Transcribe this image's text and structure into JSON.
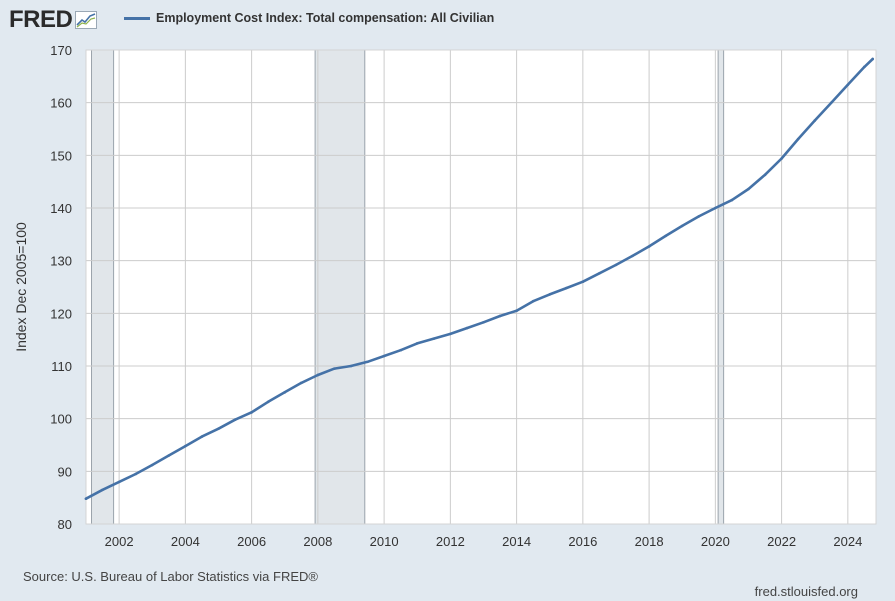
{
  "header": {
    "logo_text": "FRED",
    "legend_label": "Employment Cost Index: Total compensation: All Civilian"
  },
  "footer": {
    "source": "Source: U.S. Bureau of Labor Statistics via FRED®",
    "url": "fred.stlouisfed.org"
  },
  "colors": {
    "series": "#4572a7",
    "recession": "#e1e6ea",
    "background": "#e1e9f0",
    "plot_background": "#ffffff",
    "grid": "#cccccc"
  },
  "icons": [
    "fred-chart-icon"
  ],
  "chart_data": {
    "type": "line",
    "title": "",
    "xlabel": "",
    "ylabel": "Index Dec 2005=100",
    "xlim": [
      2001.0,
      2024.85
    ],
    "ylim": [
      80,
      170
    ],
    "grid": true,
    "legend_position": "top-left",
    "x_ticks": [
      "2002",
      "2004",
      "2006",
      "2008",
      "2010",
      "2012",
      "2014",
      "2016",
      "2018",
      "2020",
      "2022",
      "2024"
    ],
    "y_ticks": [
      80,
      90,
      100,
      110,
      120,
      130,
      140,
      150,
      160,
      170
    ],
    "recessions": [
      {
        "start": "2001-03",
        "end": "2001-11"
      },
      {
        "start": "2007-12",
        "end": "2009-06"
      },
      {
        "start": "2020-02",
        "end": "2020-04"
      }
    ],
    "series": [
      {
        "name": "Employment Cost Index: Total compensation: All Civilian",
        "x": [
          "2001-01",
          "2001-07",
          "2002-01",
          "2002-07",
          "2003-01",
          "2003-07",
          "2004-01",
          "2004-07",
          "2005-01",
          "2005-07",
          "2006-01",
          "2006-07",
          "2007-01",
          "2007-07",
          "2008-01",
          "2008-07",
          "2009-01",
          "2009-07",
          "2010-01",
          "2010-07",
          "2011-01",
          "2011-07",
          "2012-01",
          "2012-07",
          "2013-01",
          "2013-07",
          "2014-01",
          "2014-07",
          "2015-01",
          "2015-07",
          "2016-01",
          "2016-07",
          "2017-01",
          "2017-07",
          "2018-01",
          "2018-07",
          "2019-01",
          "2019-07",
          "2020-01",
          "2020-07",
          "2021-01",
          "2021-07",
          "2022-01",
          "2022-07",
          "2023-01",
          "2023-07",
          "2024-01",
          "2024-07",
          "2024-10"
        ],
        "values": [
          84.8,
          86.5,
          88.0,
          89.5,
          91.2,
          93.0,
          94.8,
          96.6,
          98.1,
          99.8,
          101.2,
          103.2,
          105.0,
          106.8,
          108.3,
          109.5,
          110.0,
          110.8,
          111.9,
          113.0,
          114.3,
          115.2,
          116.1,
          117.2,
          118.3,
          119.5,
          120.5,
          122.3,
          123.6,
          124.8,
          126.0,
          127.6,
          129.2,
          130.9,
          132.7,
          134.7,
          136.6,
          138.4,
          140.0,
          141.5,
          143.6,
          146.3,
          149.4,
          153.1,
          156.6,
          160.0,
          163.4,
          166.8,
          168.3
        ]
      }
    ]
  }
}
